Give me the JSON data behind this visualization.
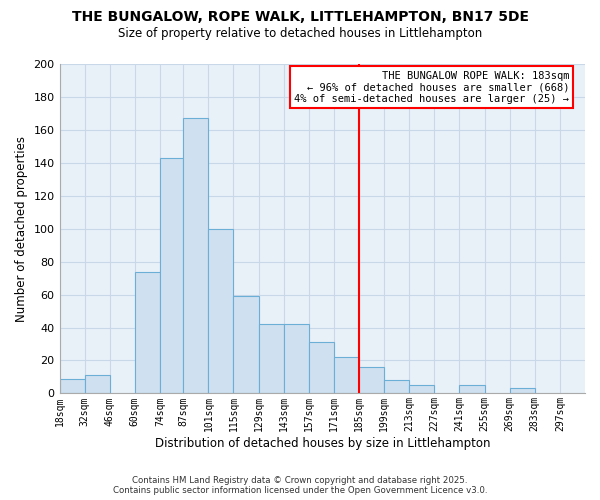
{
  "title": "THE BUNGALOW, ROPE WALK, LITTLEHAMPTON, BN17 5DE",
  "subtitle": "Size of property relative to detached houses in Littlehampton",
  "xlabel": "Distribution of detached houses by size in Littlehampton",
  "ylabel": "Number of detached properties",
  "bin_labels": [
    "18sqm",
    "32sqm",
    "46sqm",
    "60sqm",
    "74sqm",
    "87sqm",
    "101sqm",
    "115sqm",
    "129sqm",
    "143sqm",
    "157sqm",
    "171sqm",
    "185sqm",
    "199sqm",
    "213sqm",
    "227sqm",
    "241sqm",
    "255sqm",
    "269sqm",
    "283sqm",
    "297sqm"
  ],
  "bin_edges": [
    18,
    32,
    46,
    60,
    74,
    87,
    101,
    115,
    129,
    143,
    157,
    171,
    185,
    199,
    213,
    227,
    241,
    255,
    269,
    283,
    297
  ],
  "bar_heights": [
    9,
    11,
    0,
    74,
    143,
    167,
    100,
    59,
    42,
    42,
    31,
    22,
    16,
    8,
    5,
    0,
    5,
    0,
    3,
    0,
    0
  ],
  "bar_color": "#cfe0f0",
  "bar_edge_color": "#6baed6",
  "vline_x": 185,
  "vline_color": "red",
  "annotation_line1": "THE BUNGALOW ROPE WALK: 183sqm",
  "annotation_line2": "← 96% of detached houses are smaller (668)",
  "annotation_line3": "4% of semi-detached houses are larger (25) →",
  "annotation_box_color": "white",
  "annotation_box_edge": "red",
  "ylim": [
    0,
    200
  ],
  "yticks": [
    0,
    20,
    40,
    60,
    80,
    100,
    120,
    140,
    160,
    180,
    200
  ],
  "footer_line1": "Contains HM Land Registry data © Crown copyright and database right 2025.",
  "footer_line2": "Contains public sector information licensed under the Open Government Licence v3.0.",
  "bg_color": "#ffffff",
  "plot_bg_color": "#e8f0f8",
  "grid_color": "#c8d8e8"
}
